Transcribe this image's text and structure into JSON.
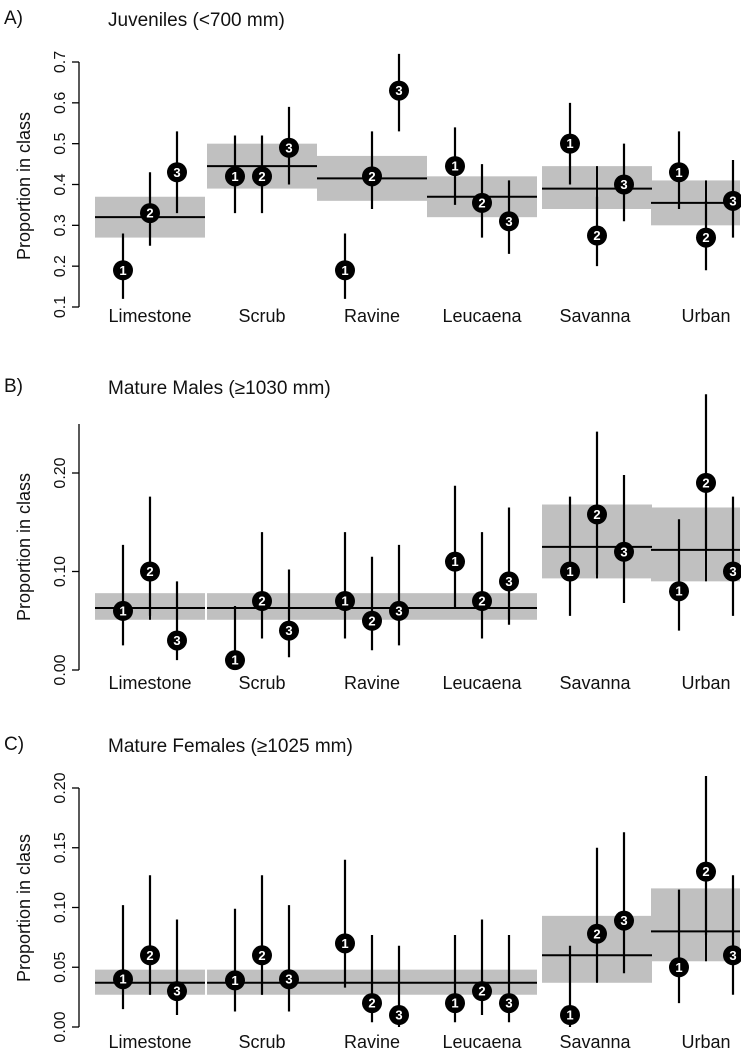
{
  "chart_data": [
    {
      "type": "scatter",
      "panel_letter": "A)",
      "title": "Juveniles (<700 mm)",
      "ylabel": "Proportion in class",
      "yticks": [
        "0.1",
        "0.2",
        "0.3",
        "0.4",
        "0.5",
        "0.6",
        "0.7"
      ],
      "ylim": [
        0.1,
        0.72
      ],
      "categories": [
        "Limestone",
        "Scrub",
        "Ravine",
        "Leucaena",
        "Savanna",
        "Urban"
      ],
      "points_per_category": [
        "1",
        "2",
        "3"
      ],
      "colors": {
        "point": "#000000",
        "band": "#c0c0c0",
        "line": "#000000"
      },
      "groups": [
        {
          "category": "Limestone",
          "band": [
            0.27,
            0.37
          ],
          "mean": 0.32,
          "range": [
            0.27,
            0.37
          ],
          "points": [
            {
              "label": "1",
              "y": 0.19,
              "lo": 0.12,
              "hi": 0.28
            },
            {
              "label": "2",
              "y": 0.33,
              "lo": 0.25,
              "hi": 0.43
            },
            {
              "label": "3",
              "y": 0.43,
              "lo": 0.33,
              "hi": 0.53
            }
          ]
        },
        {
          "category": "Scrub",
          "band": [
            0.39,
            0.5
          ],
          "mean": 0.445,
          "range": [
            0.39,
            0.5
          ],
          "points": [
            {
              "label": "1",
              "y": 0.42,
              "lo": 0.33,
              "hi": 0.52
            },
            {
              "label": "2",
              "y": 0.42,
              "lo": 0.33,
              "hi": 0.52
            },
            {
              "label": "3",
              "y": 0.49,
              "lo": 0.4,
              "hi": 0.59
            }
          ]
        },
        {
          "category": "Ravine",
          "band": [
            0.36,
            0.47
          ],
          "mean": 0.415,
          "range": [
            0.36,
            0.47
          ],
          "points": [
            {
              "label": "1",
              "y": 0.19,
              "lo": 0.12,
              "hi": 0.28
            },
            {
              "label": "2",
              "y": 0.42,
              "lo": 0.34,
              "hi": 0.53
            },
            {
              "label": "3",
              "y": 0.63,
              "lo": 0.53,
              "hi": 0.72
            }
          ]
        },
        {
          "category": "Leucaena",
          "band": [
            0.32,
            0.42
          ],
          "mean": 0.37,
          "range": [
            0.32,
            0.42
          ],
          "points": [
            {
              "label": "1",
              "y": 0.445,
              "lo": 0.35,
              "hi": 0.54
            },
            {
              "label": "2",
              "y": 0.355,
              "lo": 0.27,
              "hi": 0.45
            },
            {
              "label": "3",
              "y": 0.31,
              "lo": 0.23,
              "hi": 0.41
            }
          ]
        },
        {
          "category": "Savanna",
          "band": [
            0.34,
            0.445
          ],
          "mean": 0.39,
          "range": [
            0.34,
            0.445
          ],
          "points": [
            {
              "label": "1",
              "y": 0.5,
              "lo": 0.4,
              "hi": 0.6
            },
            {
              "label": "2",
              "y": 0.275,
              "lo": 0.2,
              "hi": 0.37
            },
            {
              "label": "3",
              "y": 0.4,
              "lo": 0.31,
              "hi": 0.5
            }
          ]
        },
        {
          "category": "Urban",
          "band": [
            0.3,
            0.41
          ],
          "mean": 0.355,
          "range": [
            0.3,
            0.41
          ],
          "points": [
            {
              "label": "1",
              "y": 0.43,
              "lo": 0.34,
              "hi": 0.53
            },
            {
              "label": "2",
              "y": 0.27,
              "lo": 0.19,
              "hi": 0.36
            },
            {
              "label": "3",
              "y": 0.36,
              "lo": 0.27,
              "hi": 0.46
            }
          ]
        }
      ]
    },
    {
      "type": "scatter",
      "panel_letter": "B)",
      "title": "Mature Males (≥1030 mm)",
      "ylabel": "Proportion in class",
      "yticks": [
        "0.00",
        "0.10",
        "0.20"
      ],
      "ylim": [
        0.0,
        0.25
      ],
      "categories": [
        "Limestone",
        "Scrub",
        "Ravine",
        "Leucaena",
        "Savanna",
        "Urban"
      ],
      "points_per_category": [
        "1",
        "2",
        "3"
      ],
      "colors": {
        "point": "#000000",
        "band": "#c0c0c0",
        "line": "#000000"
      },
      "groups": [
        {
          "category": "Limestone",
          "band": [
            0.051,
            0.078
          ],
          "mean": 0.063,
          "range": [
            0.051,
            0.078
          ],
          "points": [
            {
              "label": "1",
              "y": 0.06,
              "lo": 0.025,
              "hi": 0.127
            },
            {
              "label": "2",
              "y": 0.1,
              "lo": 0.055,
              "hi": 0.176
            },
            {
              "label": "3",
              "y": 0.03,
              "lo": 0.01,
              "hi": 0.09
            }
          ]
        },
        {
          "category": "Scrub",
          "band": [
            0.051,
            0.078
          ],
          "mean": 0.063,
          "range": [
            0.051,
            0.078
          ],
          "points": [
            {
              "label": "1",
              "y": 0.01,
              "lo": 0.0,
              "hi": 0.065
            },
            {
              "label": "2",
              "y": 0.07,
              "lo": 0.032,
              "hi": 0.14
            },
            {
              "label": "3",
              "y": 0.04,
              "lo": 0.013,
              "hi": 0.102
            }
          ]
        },
        {
          "category": "Ravine",
          "band": [
            0.051,
            0.078
          ],
          "mean": 0.063,
          "range": [
            0.051,
            0.078
          ],
          "points": [
            {
              "label": "1",
              "y": 0.07,
              "lo": 0.032,
              "hi": 0.14
            },
            {
              "label": "2",
              "y": 0.05,
              "lo": 0.02,
              "hi": 0.115
            },
            {
              "label": "3",
              "y": 0.06,
              "lo": 0.025,
              "hi": 0.127
            }
          ]
        },
        {
          "category": "Leucaena",
          "band": [
            0.051,
            0.078
          ],
          "mean": 0.063,
          "range": [
            0.051,
            0.078
          ],
          "points": [
            {
              "label": "1",
              "y": 0.11,
              "lo": 0.062,
              "hi": 0.187
            },
            {
              "label": "2",
              "y": 0.07,
              "lo": 0.032,
              "hi": 0.14
            },
            {
              "label": "3",
              "y": 0.09,
              "lo": 0.046,
              "hi": 0.165
            }
          ]
        },
        {
          "category": "Savanna",
          "band": [
            0.093,
            0.168
          ],
          "mean": 0.125,
          "range": [
            0.093,
            0.168
          ],
          "points": [
            {
              "label": "1",
              "y": 0.1,
              "lo": 0.055,
              "hi": 0.176
            },
            {
              "label": "2",
              "y": 0.158,
              "lo": 0.097,
              "hi": 0.242
            },
            {
              "label": "3",
              "y": 0.12,
              "lo": 0.068,
              "hi": 0.198
            }
          ]
        },
        {
          "category": "Urban",
          "band": [
            0.09,
            0.165
          ],
          "mean": 0.122,
          "range": [
            0.09,
            0.165
          ],
          "points": [
            {
              "label": "1",
              "y": 0.08,
              "lo": 0.04,
              "hi": 0.153
            },
            {
              "label": "2",
              "y": 0.19,
              "lo": 0.123,
              "hi": 0.28
            },
            {
              "label": "3",
              "y": 0.1,
              "lo": 0.055,
              "hi": 0.176
            }
          ]
        }
      ]
    },
    {
      "type": "scatter",
      "panel_letter": "C)",
      "title": "Mature Females (≥1025 mm)",
      "ylabel": "Proportion in class",
      "yticks": [
        "0.00",
        "0.05",
        "0.10",
        "0.15",
        "0.20"
      ],
      "ylim": [
        0.0,
        0.21
      ],
      "categories": [
        "Limestone",
        "Scrub",
        "Ravine",
        "Leucaena",
        "Savanna",
        "Urban"
      ],
      "points_per_category": [
        "1",
        "2",
        "3"
      ],
      "colors": {
        "point": "#000000",
        "band": "#c0c0c0",
        "line": "#000000"
      },
      "groups": [
        {
          "category": "Limestone",
          "band": [
            0.027,
            0.048
          ],
          "mean": 0.037,
          "range": [
            0.027,
            0.048
          ],
          "points": [
            {
              "label": "1",
              "y": 0.04,
              "lo": 0.015,
              "hi": 0.102
            },
            {
              "label": "2",
              "y": 0.06,
              "lo": 0.027,
              "hi": 0.127
            },
            {
              "label": "3",
              "y": 0.03,
              "lo": 0.01,
              "hi": 0.09
            }
          ]
        },
        {
          "category": "Scrub",
          "band": [
            0.027,
            0.048
          ],
          "mean": 0.037,
          "range": [
            0.027,
            0.048
          ],
          "points": [
            {
              "label": "1",
              "y": 0.039,
              "lo": 0.013,
              "hi": 0.099
            },
            {
              "label": "2",
              "y": 0.06,
              "lo": 0.027,
              "hi": 0.127
            },
            {
              "label": "3",
              "y": 0.04,
              "lo": 0.013,
              "hi": 0.102
            }
          ]
        },
        {
          "category": "Ravine",
          "band": [
            0.027,
            0.048
          ],
          "mean": 0.037,
          "range": [
            0.027,
            0.048
          ],
          "points": [
            {
              "label": "1",
              "y": 0.07,
              "lo": 0.033,
              "hi": 0.14
            },
            {
              "label": "2",
              "y": 0.02,
              "lo": 0.004,
              "hi": 0.077
            },
            {
              "label": "3",
              "y": 0.01,
              "lo": 0.0,
              "hi": 0.068
            }
          ]
        },
        {
          "category": "Leucaena",
          "band": [
            0.027,
            0.048
          ],
          "mean": 0.037,
          "range": [
            0.027,
            0.048
          ],
          "points": [
            {
              "label": "1",
              "y": 0.02,
              "lo": 0.004,
              "hi": 0.077
            },
            {
              "label": "2",
              "y": 0.03,
              "lo": 0.01,
              "hi": 0.09
            },
            {
              "label": "3",
              "y": 0.02,
              "lo": 0.004,
              "hi": 0.077
            }
          ]
        },
        {
          "category": "Savanna",
          "band": [
            0.037,
            0.093
          ],
          "mean": 0.06,
          "range": [
            0.037,
            0.093
          ],
          "points": [
            {
              "label": "1",
              "y": 0.01,
              "lo": 0.0,
              "hi": 0.068
            },
            {
              "label": "2",
              "y": 0.078,
              "lo": 0.038,
              "hi": 0.15
            },
            {
              "label": "3",
              "y": 0.089,
              "lo": 0.045,
              "hi": 0.163
            }
          ]
        },
        {
          "category": "Urban",
          "band": [
            0.055,
            0.116
          ],
          "mean": 0.08,
          "range": [
            0.055,
            0.116
          ],
          "points": [
            {
              "label": "1",
              "y": 0.05,
              "lo": 0.02,
              "hi": 0.115
            },
            {
              "label": "2",
              "y": 0.13,
              "lo": 0.077,
              "hi": 0.21
            },
            {
              "label": "3",
              "y": 0.06,
              "lo": 0.027,
              "hi": 0.127
            }
          ]
        }
      ]
    }
  ]
}
